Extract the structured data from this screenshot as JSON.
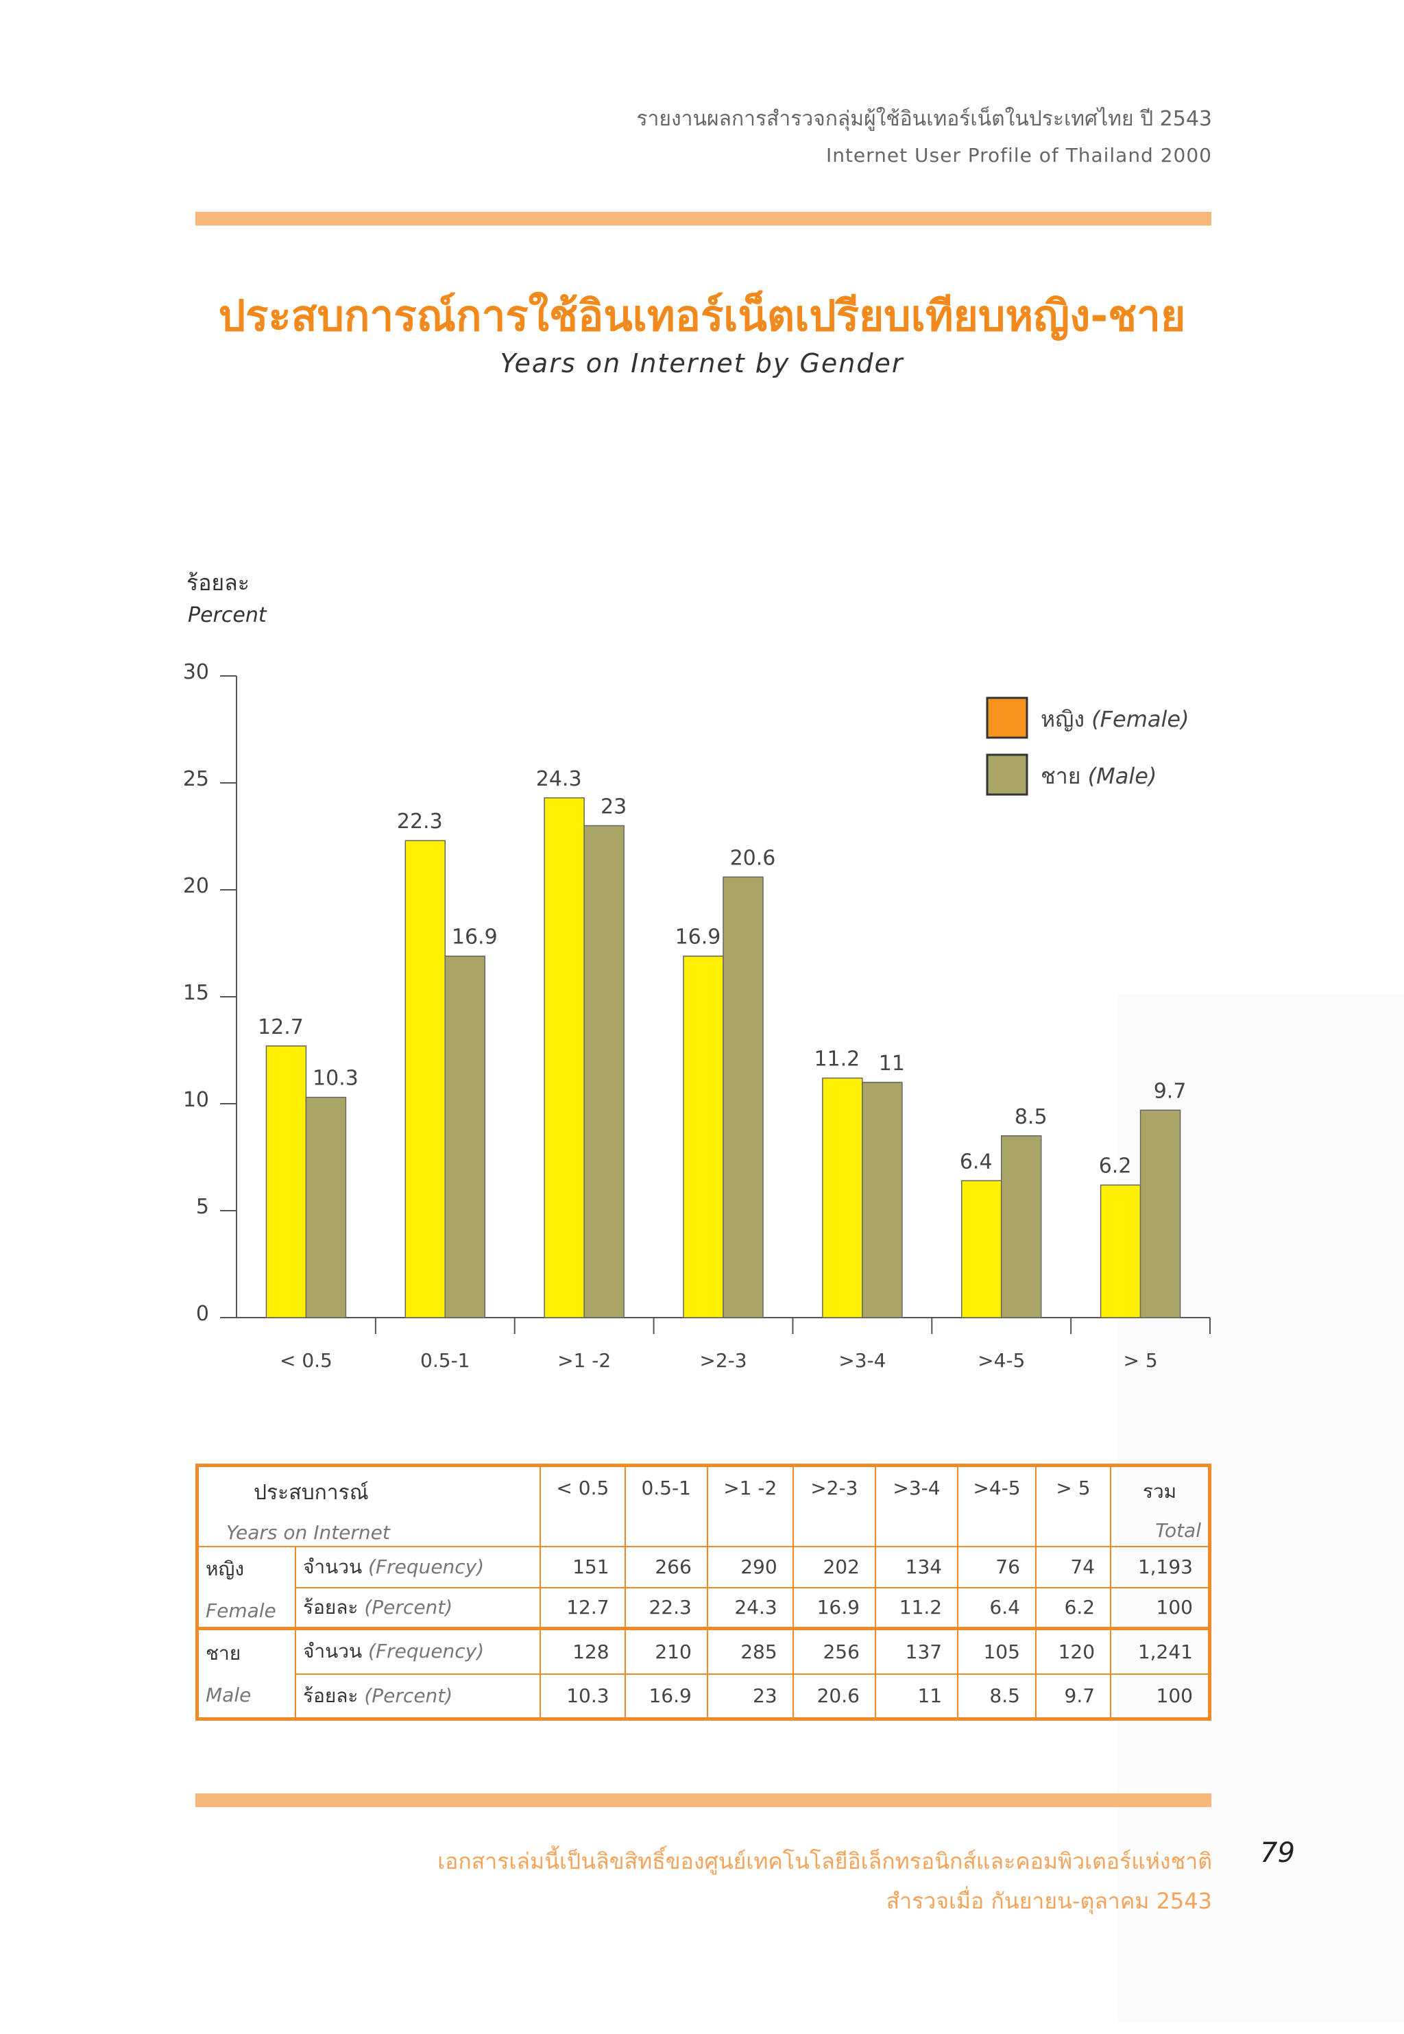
{
  "header": {
    "thai": "รายงานผลการสำรวจกลุ่มผู้ใช้อินเทอร์เน็ตในประเทศไทย ปี 2543",
    "english": "Internet User Profile of Thailand 2000"
  },
  "title": {
    "thai": "ประสบการณ์การใช้อินเทอร์เน็ตเปรียบเทียบหญิง-ชาย",
    "english": "Years on Internet by Gender"
  },
  "colors": {
    "accent": "#f08a24",
    "female": "#fff000",
    "male": "#aaa466",
    "rule": "#f6b87a"
  },
  "chart_data": {
    "type": "bar",
    "title": "Years on Internet by Gender",
    "ylabel_thai": "ร้อยละ",
    "ylabel": "Percent",
    "xlabel": "",
    "categories": [
      "< 0.5",
      "0.5-1",
      ">1 -2",
      ">2-3",
      ">3-4",
      ">4-5",
      "> 5"
    ],
    "series": [
      {
        "name": "Female",
        "label_thai": "หญิง",
        "label_en": "(Female)",
        "values": [
          12.7,
          22.3,
          24.3,
          16.9,
          11.2,
          6.4,
          6.2
        ]
      },
      {
        "name": "Male",
        "label_thai": "ชาย",
        "label_en": "(Male)",
        "values": [
          10.3,
          16.9,
          23,
          20.6,
          11,
          8.5,
          9.7
        ]
      }
    ],
    "ylim": [
      0,
      30
    ],
    "yticks": [
      0,
      5,
      10,
      15,
      20,
      25,
      30
    ],
    "legend": "top-right"
  },
  "table": {
    "header": {
      "label_thai": "ประสบการณ์",
      "label_en": "Years on Internet",
      "cols": [
        "< 0.5",
        "0.5-1",
        ">1 -2",
        ">2-3",
        ">3-4",
        ">4-5",
        "> 5"
      ],
      "total_thai": "รวม",
      "total_en": "Total"
    },
    "female": {
      "thai": "หญิง",
      "en": "Female",
      "freq_label_thai": "จำนวน",
      "freq_label_en": "(Frequency)",
      "pct_label_thai": "ร้อยละ",
      "pct_label_en": "(Percent)",
      "freq": [
        "151",
        "266",
        "290",
        "202",
        "134",
        "76",
        "74",
        "1,193"
      ],
      "pct": [
        "12.7",
        "22.3",
        "24.3",
        "16.9",
        "11.2",
        "6.4",
        "6.2",
        "100"
      ]
    },
    "male": {
      "thai": "ชาย",
      "en": "Male",
      "freq_label_thai": "จำนวน",
      "freq_label_en": "(Frequency)",
      "pct_label_thai": "ร้อยละ",
      "pct_label_en": "(Percent)",
      "freq": [
        "128",
        "210",
        "285",
        "256",
        "137",
        "105",
        "120",
        "1,241"
      ],
      "pct": [
        "10.3",
        "16.9",
        "23",
        "20.6",
        "11",
        "8.5",
        "9.7",
        "100"
      ]
    }
  },
  "footer": {
    "line1": "เอกสารเล่มนี้เป็นลิขสิทธิ์ของศูนย์เทคโนโลยีอิเล็กทรอนิกส์และคอมพิวเตอร์แห่งชาติ",
    "line2": "สำรวจเมื่อ กันยายน-ตุลาคม 2543",
    "page_number": "79"
  }
}
